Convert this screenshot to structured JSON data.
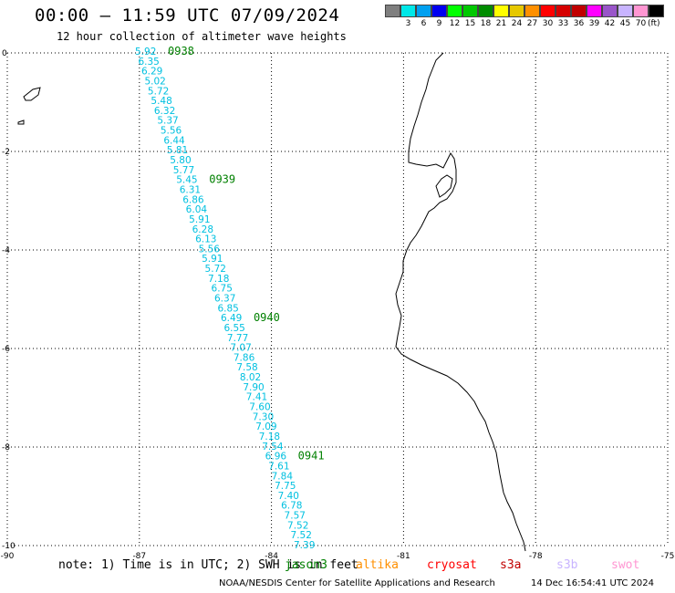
{
  "title": "00:00 – 11:59 UTC 07/09/2024",
  "subtitle": "12 hour collection of altimeter wave heights",
  "legend": {
    "unit": "(ft)",
    "colors": [
      "#7f7f7f",
      "#00e8e8",
      "#00a0f0",
      "#0000f0",
      "#00ff00",
      "#00c800",
      "#008c00",
      "#ffff00",
      "#e6c800",
      "#ff9000",
      "#ff0000",
      "#d60000",
      "#c00000",
      "#ff00ff",
      "#9955c9",
      "#c8b4ff",
      "#ff96d2",
      "#000000"
    ],
    "labels": [
      "3",
      "6",
      "9",
      "12",
      "15",
      "18",
      "21",
      "24",
      "27",
      "30",
      "33",
      "36",
      "39",
      "42",
      "45",
      "70"
    ]
  },
  "axes": {
    "x_ticks": [
      "-90",
      "-87",
      "-84",
      "-81",
      "-78",
      "-75"
    ],
    "y_ticks": [
      "0",
      "-2",
      "-4",
      "-6",
      "-8",
      "-10"
    ]
  },
  "track": {
    "color": "#00c0e0",
    "values": [
      "5.92",
      "6.35",
      "6.29",
      "5.02",
      "5.72",
      "5.48",
      "6.32",
      "5.37",
      "5.56",
      "6.44",
      "5.81",
      "5.80",
      "5.77",
      "5.45",
      "6.31",
      "6.86",
      "6.04",
      "5.91",
      "6.28",
      "6.13",
      "5.56",
      "5.91",
      "5.72",
      "7.18",
      "6.75",
      "6.37",
      "6.85",
      "6.49",
      "6.55",
      "7.77",
      "7.07",
      "7.86",
      "7.58",
      "8.02",
      "7.90",
      "7.41",
      "7.60",
      "7.30",
      "7.09",
      "7.18",
      "7.54",
      "6.96",
      "7.61",
      "7.84",
      "7.75",
      "7.40",
      "6.78",
      "7.57",
      "7.52",
      "7.52",
      "7.39"
    ],
    "time_labels": [
      {
        "text": "0938",
        "index": 0
      },
      {
        "text": "0939",
        "index": 13
      },
      {
        "text": "0940",
        "index": 27
      },
      {
        "text": "0941",
        "index": 41
      }
    ],
    "time_color": "#008000"
  },
  "footer": {
    "note": "note: 1) Time is in UTC; 2) SWH is in feet",
    "satellites": [
      {
        "name": "jason3",
        "color": "#008000"
      },
      {
        "name": "altika",
        "color": "#ff9000"
      },
      {
        "name": "cryosat",
        "color": "#ff0000"
      },
      {
        "name": "s3a",
        "color": "#c00000"
      },
      {
        "name": "s3b",
        "color": "#c8b4ff"
      },
      {
        "name": "swot",
        "color": "#ff96d2"
      }
    ],
    "credit": "NOAA/NESDIS Center for Satellite Applications and Research",
    "stamp": "14 Dec 16:54:41 UTC 2024"
  }
}
